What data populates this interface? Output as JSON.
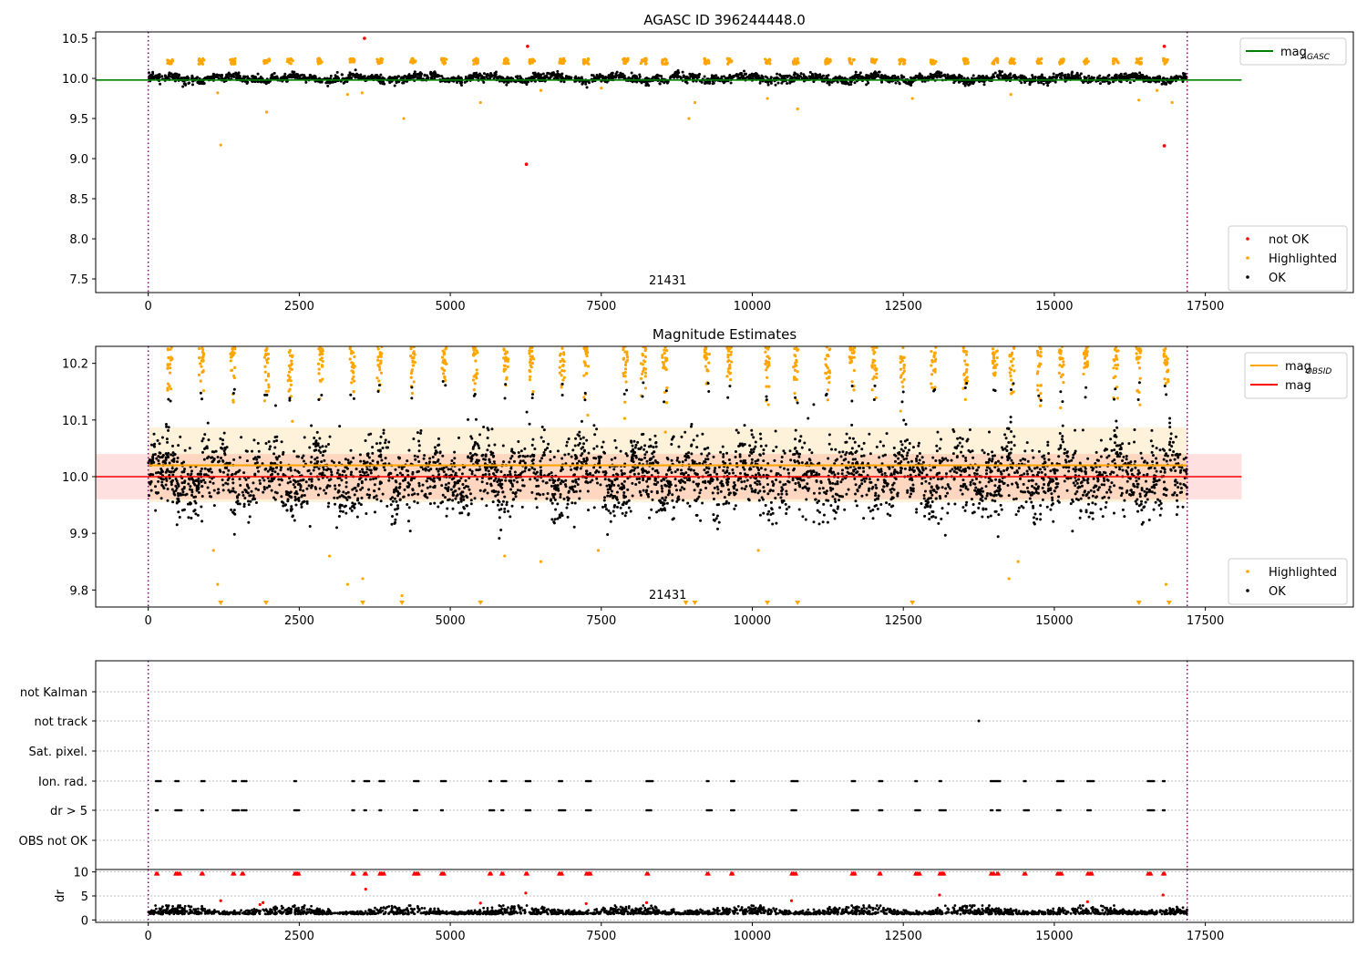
{
  "chart_data": [
    {
      "type": "scatter",
      "title": "AGASC ID 396244448.0",
      "xlim": [
        -870,
        19950
      ],
      "ylim": [
        7.33,
        10.58
      ],
      "xticks": [
        0,
        2500,
        5000,
        7500,
        10000,
        12500,
        15000,
        17500
      ],
      "yticks": [
        7.5,
        8.0,
        8.5,
        9.0,
        9.5,
        10.0,
        10.5
      ],
      "ytick_labels": [
        "7.5",
        "8.0",
        "8.5",
        "9.0",
        "9.5",
        "10.0",
        "10.5"
      ],
      "obsid_label": "21431",
      "obsid_label_x": 8600,
      "vlines": [
        0,
        17200
      ],
      "grid": false,
      "mag_agasc": 9.98,
      "mag_agasc_xrange": [
        -870,
        18100
      ],
      "legend_top": "top-right",
      "legend_bottom": "bottom-right",
      "legend_top_entries": [
        {
          "label": "mag",
          "sub": "AGASC",
          "color": "#008000"
        }
      ],
      "legend_bottom_entries": [
        {
          "label": "not OK",
          "color": "#ff0000"
        },
        {
          "label": "Highlighted",
          "color": "#ffa500"
        },
        {
          "label": "OK",
          "color": "#000000"
        }
      ],
      "series": [
        {
          "name": "not OK",
          "color": "#ff0000",
          "points": [
            [
              3580,
              10.5
            ],
            [
              6280,
              10.4
            ],
            [
              6260,
              8.93
            ],
            [
              16820,
              10.4
            ],
            [
              16820,
              9.16
            ]
          ]
        },
        {
          "name": "Highlighted",
          "color": "#ffa500",
          "outliers": [
            [
              1200,
              9.17
            ],
            [
              1960,
              9.58
            ],
            [
              1150,
              9.82
            ],
            [
              3300,
              9.8
            ],
            [
              3540,
              9.82
            ],
            [
              4230,
              9.5
            ],
            [
              5500,
              9.7
            ],
            [
              6500,
              9.85
            ],
            [
              7500,
              9.88
            ],
            [
              8950,
              9.5
            ],
            [
              9050,
              9.7
            ],
            [
              10250,
              9.75
            ],
            [
              10750,
              9.62
            ],
            [
              12650,
              9.75
            ],
            [
              14280,
              9.8
            ],
            [
              16400,
              9.73
            ],
            [
              16700,
              9.85
            ],
            [
              16950,
              9.7
            ]
          ],
          "cluster_centers": [
            360,
            880,
            1400,
            1960,
            2350,
            2850,
            3380,
            3830,
            4380,
            4900,
            5420,
            5920,
            6350,
            6850,
            7250,
            7900,
            8200,
            8550,
            9250,
            9620,
            10250,
            10720,
            11250,
            11650,
            12020,
            12480,
            13000,
            13530,
            14020,
            14300,
            14750,
            15120,
            15520,
            16020,
            16400,
            16850
          ],
          "cluster_level": 10.2
        },
        {
          "name": "OK",
          "color": "#000000",
          "x_range": [
            0,
            17200
          ],
          "center": 10.0,
          "spread": 0.07
        }
      ]
    },
    {
      "type": "scatter",
      "title": "Magnitude Estimates",
      "xlim": [
        -870,
        19950
      ],
      "ylim": [
        9.77,
        10.23
      ],
      "xticks": [
        0,
        2500,
        5000,
        7500,
        10000,
        12500,
        15000,
        17500
      ],
      "yticks": [
        9.8,
        9.9,
        10.0,
        10.1,
        10.2
      ],
      "ytick_labels": [
        "9.8",
        "9.9",
        "10.0",
        "10.1",
        "10.2"
      ],
      "obsid_label": "21431",
      "obsid_label_x": 8600,
      "vlines": [
        0,
        17200
      ],
      "grid": false,
      "mag_obsid": 10.02,
      "mag_obsid_band": [
        9.955,
        10.087
      ],
      "mag_obsid_xrange": [
        0,
        17200
      ],
      "mag": 10.0,
      "mag_band": [
        9.96,
        10.04
      ],
      "mag_xrange": [
        -870,
        18100
      ],
      "legend_top": "top-right",
      "legend_bottom": "bottom-right",
      "legend_top_entries": [
        {
          "label": "mag",
          "sub": "OBSID",
          "color": "#ffa500"
        },
        {
          "label": "mag",
          "sub": "",
          "color": "#ff0000"
        }
      ],
      "legend_bottom_entries": [
        {
          "label": "Highlighted",
          "color": "#ffa500"
        },
        {
          "label": "OK",
          "color": "#000000"
        }
      ],
      "clipped_low_markers_x": [
        1200,
        1950,
        3550,
        4200,
        5500,
        8900,
        9050,
        10250,
        10750,
        12650,
        16400,
        16900
      ],
      "series": [
        {
          "name": "Highlighted",
          "color": "#ffa500",
          "outliers": [
            [
              1080,
              9.87
            ],
            [
              1150,
              9.81
            ],
            [
              3000,
              9.86
            ],
            [
              3300,
              9.81
            ],
            [
              3550,
              9.82
            ],
            [
              4200,
              9.79
            ],
            [
              5900,
              9.86
            ],
            [
              6500,
              9.85
            ],
            [
              7450,
              9.87
            ],
            [
              10100,
              9.87
            ],
            [
              14250,
              9.82
            ],
            [
              14400,
              9.85
            ],
            [
              16850,
              9.81
            ]
          ],
          "cluster_centers": [
            360,
            880,
            1400,
            1960,
            2350,
            2850,
            3380,
            3830,
            4380,
            4900,
            5420,
            5920,
            6350,
            6850,
            7250,
            7900,
            8200,
            8550,
            9250,
            9620,
            10250,
            10720,
            11250,
            11650,
            12020,
            12480,
            13000,
            13530,
            14020,
            14300,
            14750,
            15120,
            15520,
            16020,
            16400,
            16850
          ]
        },
        {
          "name": "OK",
          "color": "#000000",
          "x_range": [
            0,
            17200
          ],
          "center": 10.0,
          "spread": 0.045
        }
      ]
    },
    {
      "type": "scatter",
      "title": "",
      "xlim": [
        -870,
        19950
      ],
      "vlines": [
        0,
        17200
      ],
      "flag_labels": [
        "not Kalman",
        "not track",
        "Sat. pixel.",
        "Ion. rad.",
        "dr > 5",
        "OBS not OK"
      ],
      "ion_rad_clusters": [
        130,
        450,
        880,
        1400,
        1550,
        2420,
        3380,
        3580,
        3830,
        4400,
        4850,
        5650,
        5850,
        6250,
        6800,
        7250,
        8250,
        9250,
        9650,
        10650,
        11650,
        12100,
        12700,
        13100,
        13950,
        14050,
        14500,
        15050,
        15550,
        16550,
        16800
      ],
      "not_track_points": [
        13750
      ]
    },
    {
      "type": "scatter",
      "title": "",
      "ylabel": "dr",
      "xlim": [
        -870,
        19950
      ],
      "ylim": [
        -0.5,
        10.5
      ],
      "xticks": [
        0,
        2500,
        5000,
        7500,
        10000,
        12500,
        15000,
        17500
      ],
      "yticks": [
        0,
        5,
        10
      ],
      "ytick_labels": [
        "0",
        "5",
        "10"
      ],
      "vlines": [
        0,
        17200
      ],
      "grid": true,
      "clipped_high_x": [
        130,
        450,
        880,
        1400,
        1550,
        2420,
        3380,
        3580,
        3830,
        4400,
        4850,
        5650,
        5850,
        6250,
        6800,
        7250,
        8250,
        9250,
        9650,
        10650,
        11650,
        12100,
        12700,
        13100,
        13950,
        14050,
        14500,
        15050,
        15550,
        16550,
        16800
      ],
      "red_points": [
        [
          1200,
          4.0
        ],
        [
          1850,
          3.2
        ],
        [
          1900,
          3.6
        ],
        [
          3600,
          6.4
        ],
        [
          5500,
          3.5
        ],
        [
          6250,
          5.6
        ],
        [
          7250,
          3.4
        ],
        [
          8250,
          3.6
        ],
        [
          10650,
          4.0
        ],
        [
          13100,
          5.2
        ],
        [
          15550,
          3.8
        ],
        [
          16800,
          5.2
        ]
      ],
      "series": [
        {
          "name": "dr",
          "color": "#000000",
          "x_range": [
            0,
            17200
          ],
          "center": 1.2,
          "spread": 0.6
        }
      ]
    }
  ]
}
